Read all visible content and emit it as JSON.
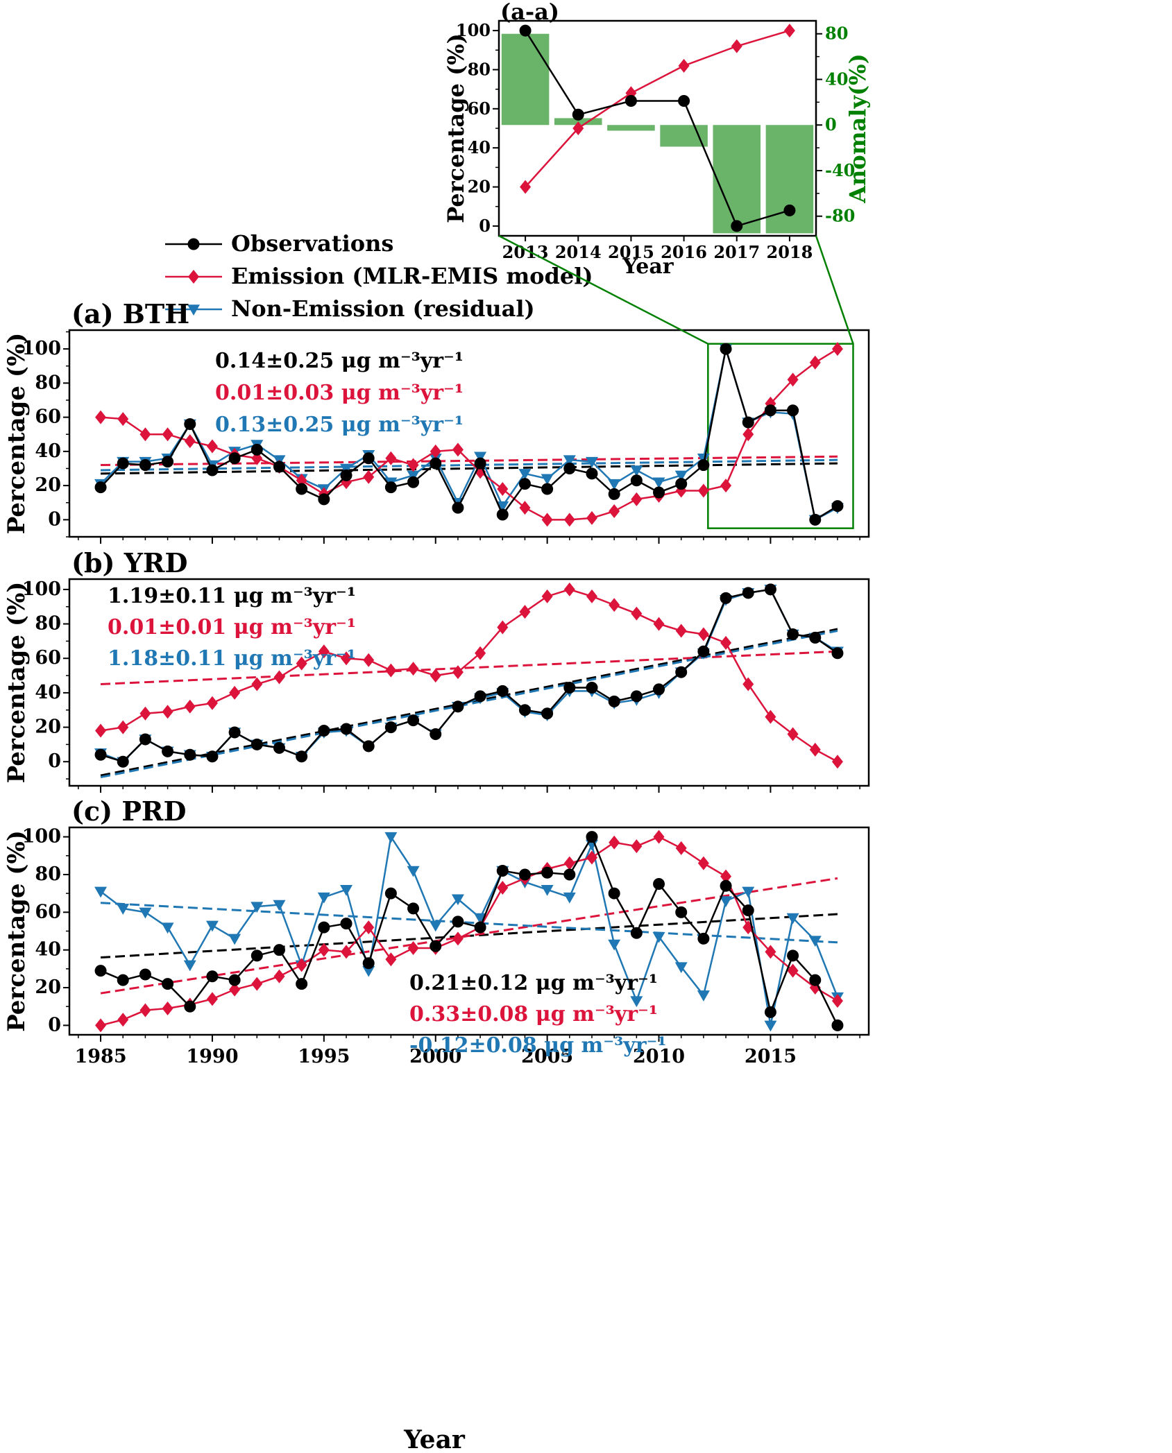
{
  "chart_data": [
    {
      "id": "inset",
      "type": "line",
      "title": "(a-a)",
      "xlabel": "Year",
      "ylabel": "Percentage (%)",
      "y2label": "Anomaly(%)",
      "x": [
        2013,
        2014,
        2015,
        2016,
        2017,
        2018
      ],
      "xlim": [
        2012.5,
        2018.5
      ],
      "ylim": [
        -5,
        105
      ],
      "yticks": [
        0,
        20,
        40,
        60,
        80,
        100
      ],
      "y2lim": [
        -97.2,
        91.4
      ],
      "y2ticks": [
        -80,
        -40,
        0,
        40,
        80
      ],
      "series": [
        {
          "name": "Observations",
          "color": "#000000",
          "marker": "circle",
          "values": [
            100,
            57,
            64,
            64,
            0,
            8
          ]
        },
        {
          "name": "Emission (MLR-EMIS model)",
          "color": "#dc143c",
          "marker": "diamond",
          "values": [
            20,
            50,
            68,
            82,
            92,
            100
          ]
        }
      ],
      "bars": {
        "color": "#6ab46a",
        "axis": "right",
        "values": [
          80,
          6,
          -5,
          -19,
          -95,
          -95
        ]
      },
      "y2color": "#008000"
    },
    {
      "id": "bth",
      "type": "line",
      "title": "(a) BTH",
      "xlabel": "",
      "ylabel": "Percentage (%)",
      "x": [
        1985,
        1986,
        1987,
        1988,
        1989,
        1990,
        1991,
        1992,
        1993,
        1994,
        1995,
        1996,
        1997,
        1998,
        1999,
        2000,
        2001,
        2002,
        2003,
        2004,
        2005,
        2006,
        2007,
        2008,
        2009,
        2010,
        2011,
        2012,
        2013,
        2014,
        2015,
        2016,
        2017,
        2018
      ],
      "xlim": [
        1983.6,
        2019.4
      ],
      "ylim": [
        -10,
        111
      ],
      "yticks": [
        0,
        20,
        40,
        60,
        80,
        100
      ],
      "series": [
        {
          "name": "Observations",
          "color": "#000000",
          "marker": "circle",
          "values": [
            19,
            33,
            32,
            34,
            56,
            29,
            36,
            41,
            31,
            18,
            12,
            26,
            36,
            19,
            22,
            33,
            7,
            33,
            3,
            21,
            18,
            30,
            27,
            15,
            23,
            16,
            21,
            32,
            100,
            57,
            64,
            64,
            0,
            8
          ],
          "trend": [
            27,
            33
          ]
        },
        {
          "name": "Emission (MLR-EMIS model)",
          "color": "#dc143c",
          "marker": "diamond",
          "values": [
            60,
            59,
            50,
            50,
            46,
            43,
            38,
            36,
            31,
            23,
            15,
            22,
            25,
            36,
            32,
            40,
            41,
            28,
            18,
            7,
            0,
            0,
            1,
            5,
            12,
            14,
            17,
            17,
            20,
            50,
            68,
            82,
            92,
            100
          ],
          "trend": [
            32,
            37
          ]
        },
        {
          "name": "Non-Emission (residual)",
          "color": "#1f77b4",
          "marker": "triangle-down",
          "values": [
            21,
            34,
            34,
            36,
            56,
            32,
            40,
            44,
            35,
            24,
            18,
            30,
            38,
            22,
            26,
            36,
            10,
            37,
            8,
            27,
            24,
            35,
            34,
            21,
            29,
            22,
            26,
            36,
            100,
            57,
            63,
            62,
            0,
            7
          ],
          "trend": [
            29,
            35
          ]
        }
      ],
      "annotations": [
        {
          "text": "0.14±0.25 μg m⁻³yr⁻¹",
          "color": "#000000"
        },
        {
          "text": "0.01±0.03 μg m⁻³yr⁻¹",
          "color": "#dc143c"
        },
        {
          "text": "0.13±0.25 μg m⁻³yr⁻¹",
          "color": "#1f77b4"
        }
      ],
      "highlight_box": {
        "x": [
          2012.2,
          2018.7
        ],
        "y": [
          -5,
          103
        ],
        "color": "#008000"
      }
    },
    {
      "id": "yrd",
      "type": "line",
      "title": "(b) YRD",
      "xlabel": "",
      "ylabel": "Percentage (%)",
      "x": [
        1985,
        1986,
        1987,
        1988,
        1989,
        1990,
        1991,
        1992,
        1993,
        1994,
        1995,
        1996,
        1997,
        1998,
        1999,
        2000,
        2001,
        2002,
        2003,
        2004,
        2005,
        2006,
        2007,
        2008,
        2009,
        2010,
        2011,
        2012,
        2013,
        2014,
        2015,
        2016,
        2017,
        2018
      ],
      "xlim": [
        1983.6,
        2019.4
      ],
      "ylim": [
        -14,
        106
      ],
      "yticks": [
        0,
        20,
        40,
        60,
        80,
        100
      ],
      "series": [
        {
          "name": "Observations",
          "color": "#000000",
          "marker": "circle",
          "values": [
            4,
            0,
            13,
            6,
            4,
            3,
            17,
            10,
            8,
            3,
            18,
            19,
            9,
            20,
            24,
            16,
            32,
            38,
            41,
            30,
            28,
            43,
            43,
            35,
            38,
            42,
            52,
            64,
            95,
            98,
            100,
            74,
            72,
            63
          ],
          "trend": [
            -8,
            77
          ]
        },
        {
          "name": "Emission (MLR-EMIS model)",
          "color": "#dc143c",
          "marker": "diamond",
          "values": [
            18,
            20,
            28,
            29,
            32,
            34,
            40,
            45,
            49,
            57,
            64,
            60,
            59,
            53,
            54,
            50,
            52,
            63,
            78,
            87,
            96,
            100,
            96,
            91,
            86,
            80,
            76,
            74,
            69,
            45,
            26,
            16,
            7,
            0
          ],
          "trend": [
            45,
            64
          ]
        },
        {
          "name": "Non-Emission (residual)",
          "color": "#1f77b4",
          "marker": "triangle-down",
          "values": [
            5,
            0,
            13,
            6,
            4,
            3,
            17,
            10,
            8,
            3,
            17,
            18,
            9,
            20,
            24,
            16,
            32,
            37,
            40,
            29,
            27,
            41,
            41,
            34,
            36,
            40,
            52,
            63,
            94,
            98,
            100,
            74,
            72,
            64
          ],
          "trend": [
            -9,
            76
          ]
        }
      ],
      "annotations": [
        {
          "text": "1.19±0.11 μg m⁻³yr⁻¹",
          "color": "#000000"
        },
        {
          "text": "0.01±0.01 μg m⁻³yr⁻¹",
          "color": "#dc143c"
        },
        {
          "text": "1.18±0.11 μg m⁻³yr⁻¹",
          "color": "#1f77b4"
        }
      ]
    },
    {
      "id": "prd",
      "type": "line",
      "title": "(c) PRD",
      "xlabel": "Year",
      "ylabel": "Percentage (%)",
      "x": [
        1985,
        1986,
        1987,
        1988,
        1989,
        1990,
        1991,
        1992,
        1993,
        1994,
        1995,
        1996,
        1997,
        1998,
        1999,
        2000,
        2001,
        2002,
        2003,
        2004,
        2005,
        2006,
        2007,
        2008,
        2009,
        2010,
        2011,
        2012,
        2013,
        2014,
        2015,
        2016,
        2017,
        2018
      ],
      "xlim": [
        1983.6,
        2019.4
      ],
      "xticks": [
        1985,
        1990,
        1995,
        2000,
        2005,
        2010,
        2015
      ],
      "ylim": [
        -5,
        105
      ],
      "yticks": [
        0,
        20,
        40,
        60,
        80,
        100
      ],
      "series": [
        {
          "name": "Observations",
          "color": "#000000",
          "marker": "circle",
          "values": [
            29,
            24,
            27,
            22,
            10,
            26,
            24,
            37,
            40,
            22,
            52,
            54,
            33,
            70,
            62,
            42,
            55,
            52,
            82,
            80,
            81,
            80,
            100,
            70,
            49,
            75,
            60,
            46,
            74,
            61,
            7,
            37,
            24,
            0
          ],
          "trend": [
            36,
            59
          ]
        },
        {
          "name": "Emission (MLR-EMIS model)",
          "color": "#dc143c",
          "marker": "diamond",
          "values": [
            0,
            3,
            8,
            9,
            11,
            14,
            19,
            22,
            26,
            32,
            40,
            39,
            52,
            35,
            41,
            41,
            46,
            52,
            73,
            78,
            83,
            86,
            89,
            97,
            95,
            100,
            94,
            86,
            79,
            52,
            39,
            29,
            20,
            13
          ],
          "trend": [
            17,
            78
          ]
        },
        {
          "name": "Non-Emission (residual)",
          "color": "#1f77b4",
          "marker": "triangle-down",
          "values": [
            71,
            62,
            60,
            52,
            32,
            53,
            46,
            63,
            64,
            32,
            68,
            72,
            29,
            100,
            82,
            53,
            67,
            57,
            82,
            76,
            72,
            68,
            96,
            43,
            13,
            47,
            31,
            16,
            66,
            71,
            0,
            57,
            45,
            15
          ],
          "trend": [
            65,
            44
          ]
        }
      ],
      "annotations": [
        {
          "text": "0.21±0.12 μg m⁻³yr⁻¹",
          "color": "#000000"
        },
        {
          "text": "0.33±0.08 μg m⁻³yr⁻¹",
          "color": "#dc143c"
        },
        {
          "text": "-0.12±0.08 μg m⁻³yr⁻¹",
          "color": "#1f77b4"
        }
      ]
    }
  ],
  "legend": [
    {
      "label": "Observations",
      "color": "#000000",
      "marker": "circle"
    },
    {
      "label": "Emission (MLR-EMIS model)",
      "color": "#dc143c",
      "marker": "diamond"
    },
    {
      "label": "Non-Emission (residual)",
      "color": "#1f77b4",
      "marker": "triangle-down"
    }
  ]
}
